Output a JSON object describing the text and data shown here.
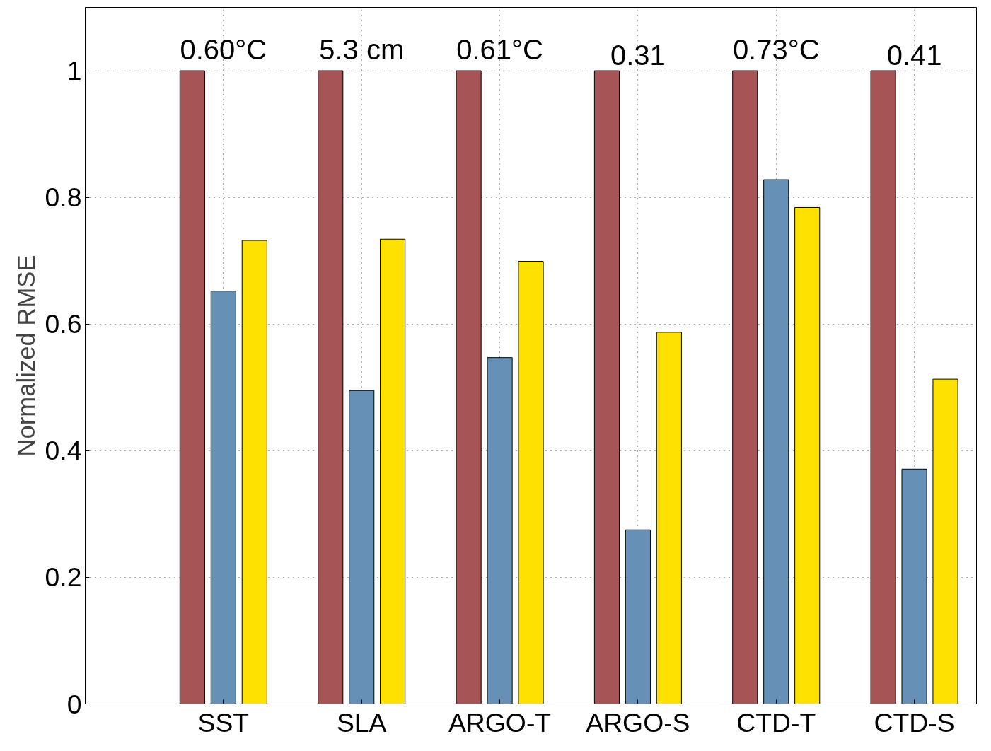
{
  "chart_data": {
    "type": "bar",
    "ylabel": "Normalized RMSE",
    "categories": [
      "SST",
      "SLA",
      "ARGO-T",
      "ARGO-S",
      "CTD-T",
      "CTD-S"
    ],
    "series": [
      {
        "color": "#a65455",
        "values": [
          1,
          1,
          1,
          1,
          1,
          1
        ]
      },
      {
        "color": "#6690b5",
        "values": [
          0.652,
          0.495,
          0.547,
          0.275,
          0.828,
          0.371
        ]
      },
      {
        "color": "#ffe100",
        "values": [
          0.732,
          0.734,
          0.699,
          0.587,
          0.784,
          0.513
        ]
      }
    ],
    "ylim": [
      0,
      1.1
    ],
    "yticks": [
      0,
      0.2,
      0.4,
      0.6,
      0.8,
      1
    ],
    "grid": true,
    "annotations": [
      "0.60°C",
      "5.3 cm",
      "0.61°C",
      "0.31",
      "0.73°C",
      "0.41"
    ]
  }
}
